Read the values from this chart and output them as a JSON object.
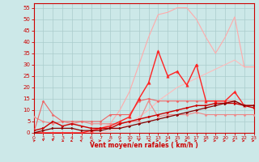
{
  "xlabel": "Vent moyen/en rafales ( km/h )",
  "bg_color": "#cce8e8",
  "grid_color": "#aacccc",
  "x_ticks": [
    0,
    1,
    2,
    3,
    4,
    5,
    6,
    7,
    8,
    9,
    10,
    11,
    12,
    13,
    14,
    15,
    16,
    17,
    18,
    19,
    20,
    21,
    22,
    23
  ],
  "y_ticks": [
    0,
    5,
    10,
    15,
    20,
    25,
    30,
    35,
    40,
    45,
    50,
    55
  ],
  "xlim": [
    0,
    23
  ],
  "ylim": [
    0,
    57
  ],
  "series": [
    {
      "x": [
        0,
        1,
        2,
        3,
        4,
        5,
        6,
        7,
        8,
        9,
        10,
        11,
        12,
        13,
        14,
        15,
        16,
        17,
        18,
        19,
        20,
        21,
        22,
        23
      ],
      "y": [
        0,
        0,
        0,
        0,
        0,
        0,
        0,
        0,
        1,
        2,
        4,
        7,
        10,
        14,
        17,
        20,
        22,
        24,
        26,
        28,
        30,
        32,
        29,
        29
      ],
      "color": "#ffbbbb",
      "lw": 0.8,
      "marker": null,
      "ms": 0
    },
    {
      "x": [
        0,
        1,
        2,
        3,
        4,
        5,
        6,
        7,
        8,
        9,
        10,
        11,
        12,
        13,
        14,
        15,
        16,
        17,
        18,
        19,
        20,
        21,
        22,
        23
      ],
      "y": [
        0,
        0,
        0,
        0,
        0,
        0,
        0,
        2,
        4,
        10,
        18,
        30,
        42,
        52,
        53,
        55,
        55,
        50,
        42,
        35,
        42,
        51,
        29,
        29
      ],
      "color": "#ffaaaa",
      "lw": 0.8,
      "marker": null,
      "ms": 0
    },
    {
      "x": [
        0,
        1,
        2,
        3,
        4,
        5,
        6,
        7,
        8,
        9,
        10,
        11,
        12,
        13,
        14,
        15,
        16,
        17,
        18,
        19,
        20,
        21,
        22,
        23
      ],
      "y": [
        7,
        5,
        4,
        5,
        4,
        5,
        4,
        4,
        4,
        4,
        5,
        5,
        14,
        7,
        8,
        8,
        8,
        9,
        8,
        8,
        8,
        8,
        8,
        8
      ],
      "color": "#ee8888",
      "lw": 0.8,
      "marker": "D",
      "ms": 1.5
    },
    {
      "x": [
        0,
        1,
        2,
        3,
        4,
        5,
        6,
        7,
        8,
        9,
        10,
        11,
        12,
        13,
        14,
        15,
        16,
        17,
        18,
        19,
        20,
        21,
        22,
        23
      ],
      "y": [
        0,
        14,
        8,
        5,
        5,
        5,
        5,
        5,
        8,
        8,
        8,
        14,
        15,
        14,
        14,
        14,
        14,
        14,
        14,
        14,
        14,
        14,
        12,
        12
      ],
      "color": "#ee6666",
      "lw": 0.8,
      "marker": "D",
      "ms": 1.5
    },
    {
      "x": [
        0,
        1,
        2,
        3,
        4,
        5,
        6,
        7,
        8,
        9,
        10,
        11,
        12,
        13,
        14,
        15,
        16,
        17,
        18,
        19,
        20,
        21,
        22,
        23
      ],
      "y": [
        0,
        0,
        0,
        0,
        0,
        0,
        1,
        2,
        3,
        5,
        7,
        15,
        22,
        36,
        25,
        27,
        21,
        30,
        14,
        14,
        14,
        18,
        12,
        12
      ],
      "color": "#ff2222",
      "lw": 1.0,
      "marker": "^",
      "ms": 2.5
    },
    {
      "x": [
        0,
        1,
        2,
        3,
        4,
        5,
        6,
        7,
        8,
        9,
        10,
        11,
        12,
        13,
        14,
        15,
        16,
        17,
        18,
        19,
        20,
        21,
        22,
        23
      ],
      "y": [
        1,
        2,
        5,
        3,
        4,
        3,
        2,
        2,
        2,
        4,
        5,
        6,
        7,
        8,
        9,
        10,
        11,
        12,
        12,
        13,
        13,
        13,
        12,
        11
      ],
      "color": "#cc0000",
      "lw": 1.0,
      "marker": ">",
      "ms": 2
    },
    {
      "x": [
        0,
        1,
        2,
        3,
        4,
        5,
        6,
        7,
        8,
        9,
        10,
        11,
        12,
        13,
        14,
        15,
        16,
        17,
        18,
        19,
        20,
        21,
        22,
        23
      ],
      "y": [
        0,
        1,
        2,
        2,
        2,
        1,
        1,
        1,
        2,
        2,
        3,
        4,
        5,
        6,
        7,
        8,
        9,
        10,
        11,
        12,
        13,
        14,
        12,
        12
      ],
      "color": "#880000",
      "lw": 0.9,
      "marker": ">",
      "ms": 2
    }
  ],
  "arrow_dirs": [
    45,
    -90,
    -90,
    -45,
    -135,
    135,
    180,
    0,
    0,
    -45,
    45,
    -90,
    180,
    0,
    0,
    0,
    0,
    0,
    0,
    0,
    0,
    0,
    0,
    0
  ]
}
